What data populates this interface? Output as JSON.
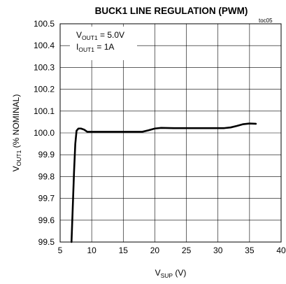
{
  "chart_data": {
    "type": "line",
    "title": "BUCK1 LINE REGULATION (PWM)",
    "figure_tag": "toc05",
    "xlabel": {
      "main": "V",
      "sub": "SUP",
      "unit": " (V)"
    },
    "ylabel": {
      "main": "V",
      "sub": "OUT1",
      "unit": " (% NOMINAL)"
    },
    "xlim": [
      5,
      40
    ],
    "ylim": [
      99.5,
      100.5
    ],
    "x_ticks": [
      "5",
      "10",
      "15",
      "20",
      "25",
      "30",
      "35",
      "40"
    ],
    "y_ticks": [
      "99.5",
      "99.6",
      "99.7",
      "99.8",
      "99.9",
      "100.0",
      "100.1",
      "100.2",
      "100.3",
      "100.4",
      "100.5"
    ],
    "grid": true,
    "annotations": [
      {
        "main": "V",
        "sub": "OUT1",
        "rest": " = 5.0V"
      },
      {
        "main": "I",
        "sub": "OUT1",
        "rest": " = 1A"
      }
    ],
    "series": [
      {
        "color": "#000000",
        "x": [
          6.8,
          7.0,
          7.2,
          7.4,
          7.6,
          7.9,
          8.3,
          8.8,
          9.3,
          10.0,
          12.0,
          15.0,
          17.0,
          18.0,
          19.0,
          20.0,
          21.0,
          23.0,
          25.0,
          28.0,
          31.0,
          32.0,
          33.0,
          34.0,
          35.0,
          36.0
        ],
        "y": [
          99.5,
          99.66,
          99.82,
          99.95,
          100.01,
          100.02,
          100.02,
          100.015,
          100.005,
          100.005,
          100.005,
          100.005,
          100.005,
          100.005,
          100.012,
          100.02,
          100.023,
          100.022,
          100.022,
          100.022,
          100.022,
          100.025,
          100.032,
          100.04,
          100.043,
          100.042
        ]
      }
    ]
  },
  "colors": {
    "line": "#000000",
    "grid": "#000000",
    "background": "#ffffff"
  }
}
